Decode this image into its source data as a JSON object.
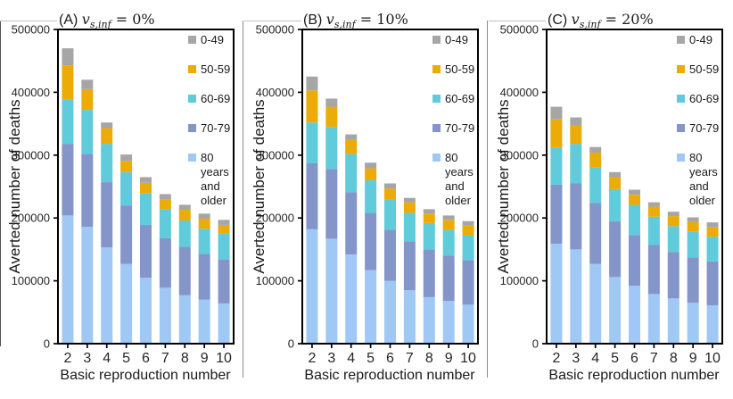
{
  "figure": {
    "y_axis_label": "Averted number of deaths",
    "x_axis_label": "Basic reproduction number",
    "axis_color": "#000000",
    "tick_label_color": "#262626",
    "legend": [
      {
        "label": "0-49",
        "color": "#A6A6A6"
      },
      {
        "label": "50-59",
        "color": "#EBAC08"
      },
      {
        "label": "60-69",
        "color": "#5FCBDB"
      },
      {
        "label": "70-79",
        "color": "#8495C9"
      },
      {
        "label": "80 years\nand older",
        "color": "#A0C8F4"
      }
    ]
  },
  "chart_data": [
    {
      "type": "bar",
      "stacked": true,
      "title": "(A) v_{s,inf} = 0%",
      "title_parts": {
        "prefix": "(A) ",
        "variable": "v",
        "subscript": "s,inf",
        "rhs": " = 0%"
      },
      "xlabel": "Basic reproduction number",
      "ylabel": "Averted number of deaths",
      "categories": [
        "2",
        "3",
        "4",
        "5",
        "6",
        "7",
        "8",
        "9",
        "10"
      ],
      "ylim": [
        0,
        500000
      ],
      "y_ticks": [
        0,
        100000,
        200000,
        300000,
        400000,
        500000
      ],
      "grid": false,
      "legend_position": "upper right",
      "series": [
        {
          "name": "80 years and older",
          "color": "#A0C8F4",
          "values": [
            204000,
            186000,
            153000,
            127000,
            105000,
            89000,
            77000,
            70000,
            64000
          ]
        },
        {
          "name": "70-79",
          "color": "#8495C9",
          "values": [
            114000,
            116000,
            104000,
            93000,
            84000,
            79000,
            77000,
            73000,
            70000
          ]
        },
        {
          "name": "60-69",
          "color": "#5FCBDB",
          "values": [
            70000,
            70000,
            61000,
            53000,
            50000,
            46000,
            42000,
            40000,
            41000
          ]
        },
        {
          "name": "50-59",
          "color": "#EBAC08",
          "values": [
            55000,
            33000,
            25000,
            18000,
            17000,
            16000,
            17000,
            16000,
            14000
          ]
        },
        {
          "name": "0-49",
          "color": "#A6A6A6",
          "values": [
            27000,
            15000,
            9000,
            10000,
            9000,
            8000,
            8000,
            8000,
            8000
          ]
        }
      ],
      "totals": [
        470000,
        420000,
        352000,
        301000,
        265000,
        238000,
        221000,
        207000,
        197000
      ]
    },
    {
      "type": "bar",
      "stacked": true,
      "title": "(B) v_{s,inf} = 10%",
      "title_parts": {
        "prefix": "(B) ",
        "variable": "v",
        "subscript": "s,inf",
        "rhs": " = 10%"
      },
      "xlabel": "Basic reproduction number",
      "ylabel": "Averted number of deaths",
      "categories": [
        "2",
        "3",
        "4",
        "5",
        "6",
        "7",
        "8",
        "9",
        "10"
      ],
      "ylim": [
        0,
        500000
      ],
      "y_ticks": [
        0,
        100000,
        200000,
        300000,
        400000,
        500000
      ],
      "grid": false,
      "legend_position": "upper right",
      "series": [
        {
          "name": "80 years and older",
          "color": "#A0C8F4",
          "values": [
            182000,
            167000,
            142000,
            117000,
            100000,
            85000,
            74000,
            68000,
            62000
          ]
        },
        {
          "name": "70-79",
          "color": "#8495C9",
          "values": [
            105000,
            111000,
            99000,
            91000,
            81000,
            78000,
            76000,
            72000,
            71000
          ]
        },
        {
          "name": "60-69",
          "color": "#5FCBDB",
          "values": [
            65000,
            67000,
            61000,
            52000,
            49000,
            45000,
            42000,
            41000,
            39000
          ]
        },
        {
          "name": "50-59",
          "color": "#EBAC08",
          "values": [
            51000,
            32000,
            22000,
            19000,
            17000,
            17000,
            15000,
            16000,
            16000
          ]
        },
        {
          "name": "0-49",
          "color": "#A6A6A6",
          "values": [
            22000,
            13000,
            9000,
            9000,
            8000,
            7000,
            7000,
            7000,
            7000
          ]
        }
      ],
      "totals": [
        425000,
        390000,
        333000,
        288000,
        255000,
        232000,
        214000,
        204000,
        195000
      ]
    },
    {
      "type": "bar",
      "stacked": true,
      "title": "(C) v_{s,inf} = 20%",
      "title_parts": {
        "prefix": "(C) ",
        "variable": "v",
        "subscript": "s,inf",
        "rhs": " = 20%"
      },
      "xlabel": "Basic reproduction number",
      "ylabel": "Averted number of deaths",
      "categories": [
        "2",
        "3",
        "4",
        "5",
        "6",
        "7",
        "8",
        "9",
        "10"
      ],
      "ylim": [
        0,
        500000
      ],
      "y_ticks": [
        0,
        100000,
        200000,
        300000,
        400000,
        500000
      ],
      "grid": false,
      "legend_position": "upper right",
      "series": [
        {
          "name": "80 years and older",
          "color": "#A0C8F4",
          "values": [
            159000,
            150000,
            127000,
            106000,
            92000,
            79000,
            72000,
            65000,
            61000
          ]
        },
        {
          "name": "70-79",
          "color": "#8495C9",
          "values": [
            94000,
            105000,
            97000,
            89000,
            81000,
            78000,
            74000,
            72000,
            70000
          ]
        },
        {
          "name": "60-69",
          "color": "#5FCBDB",
          "values": [
            59000,
            63000,
            56000,
            51000,
            48000,
            45000,
            41000,
            41000,
            39000
          ]
        },
        {
          "name": "50-59",
          "color": "#EBAC08",
          "values": [
            45000,
            30000,
            24000,
            19000,
            16000,
            16000,
            16000,
            16000,
            15000
          ]
        },
        {
          "name": "0-49",
          "color": "#A6A6A6",
          "values": [
            20000,
            12000,
            9000,
            8000,
            8000,
            7000,
            7000,
            7000,
            8000
          ]
        }
      ],
      "totals": [
        377000,
        360000,
        313000,
        273000,
        245000,
        225000,
        210000,
        201000,
        193000
      ]
    }
  ]
}
